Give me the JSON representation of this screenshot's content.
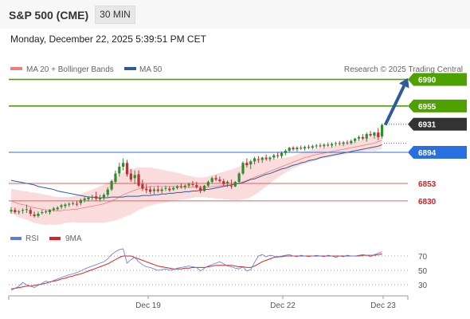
{
  "header": {
    "instrument": "S&P 500 (CME)",
    "timeframe": "30 MIN"
  },
  "timestamp": "Monday, December 22, 2025 5:39:51 PM CET",
  "legend": {
    "bollinger": "MA 20 + Bollinger Bands",
    "ma50": "MA 50",
    "credit": "Research © 2025 Trading Central",
    "rsi": "RSI",
    "rsi_ma": "9MA"
  },
  "colors": {
    "resistance": "#4da100",
    "last_price": "#333333",
    "pivot": "#2a6fe0",
    "support": "#e06060",
    "support_text": "#cc2222",
    "ma50": "#2f5a9c",
    "bollinger": "#f07c7c",
    "band_fill": "#fbdcdc",
    "up_candle": "#2e8b2e",
    "down_candle": "#c03030",
    "arrow": "#2f5a9c",
    "rsi_line": "#5b7be0",
    "rsi_ma_line": "#e02020"
  },
  "chart_data": {
    "type": "candlestick",
    "price_axis_range": [
      6813,
      6998
    ],
    "x_labels": [
      "Dec 19",
      "Dec 22",
      "Dec 23"
    ],
    "levels": [
      {
        "name": "resistance-2",
        "value": 6990,
        "label": "6990",
        "kind": "resistance"
      },
      {
        "name": "resistance-1",
        "value": 6955,
        "label": "6955",
        "kind": "resistance"
      },
      {
        "name": "last",
        "value": 6931,
        "label": "6931",
        "kind": "last"
      },
      {
        "name": "pivot",
        "value": 6894,
        "label": "6894",
        "kind": "pivot"
      },
      {
        "name": "support-1",
        "value": 6853,
        "label": "6853",
        "kind": "support"
      },
      {
        "name": "support-2",
        "value": 6830,
        "label": "6830",
        "kind": "support"
      }
    ],
    "ohlc": [
      [
        6816,
        6822,
        6813,
        6818
      ],
      [
        6818,
        6821,
        6813,
        6815
      ],
      [
        6815,
        6818,
        6812,
        6816
      ],
      [
        6817,
        6820,
        6813,
        6818
      ],
      [
        6818,
        6825,
        6814,
        6819
      ],
      [
        6818,
        6821,
        6810,
        6813
      ],
      [
        6812,
        6816,
        6808,
        6810
      ],
      [
        6810,
        6816,
        6808,
        6813
      ],
      [
        6814,
        6818,
        6812,
        6815
      ],
      [
        6815,
        6818,
        6813,
        6816
      ],
      [
        6815,
        6819,
        6812,
        6818
      ],
      [
        6818,
        6822,
        6816,
        6820
      ],
      [
        6819,
        6823,
        6817,
        6821
      ],
      [
        6822,
        6826,
        6819,
        6824
      ],
      [
        6823,
        6827,
        6820,
        6825
      ],
      [
        6825,
        6828,
        6822,
        6826
      ],
      [
        6826,
        6829,
        6824,
        6827
      ],
      [
        6826,
        6830,
        6823,
        6825
      ],
      [
        6827,
        6833,
        6824,
        6831
      ],
      [
        6831,
        6835,
        6828,
        6833
      ],
      [
        6832,
        6836,
        6829,
        6834
      ],
      [
        6834,
        6838,
        6831,
        6835
      ],
      [
        6836,
        6842,
        6830,
        6833
      ],
      [
        6832,
        6838,
        6829,
        6834
      ],
      [
        6834,
        6840,
        6831,
        6838
      ],
      [
        6838,
        6848,
        6835,
        6845
      ],
      [
        6845,
        6858,
        6843,
        6856
      ],
      [
        6855,
        6870,
        6852,
        6866
      ],
      [
        6866,
        6880,
        6862,
        6875
      ],
      [
        6875,
        6886,
        6870,
        6880
      ],
      [
        6880,
        6884,
        6862,
        6865
      ],
      [
        6866,
        6872,
        6855,
        6858
      ],
      [
        6860,
        6870,
        6852,
        6864
      ],
      [
        6865,
        6870,
        6848,
        6850
      ],
      [
        6852,
        6858,
        6843,
        6846
      ],
      [
        6846,
        6852,
        6840,
        6844
      ],
      [
        6845,
        6849,
        6839,
        6842
      ],
      [
        6843,
        6848,
        6839,
        6845
      ],
      [
        6845,
        6850,
        6841,
        6843
      ],
      [
        6843,
        6848,
        6840,
        6845
      ],
      [
        6846,
        6850,
        6843,
        6847
      ],
      [
        6846,
        6849,
        6842,
        6844
      ],
      [
        6845,
        6849,
        6843,
        6847
      ],
      [
        6847,
        6851,
        6845,
        6849
      ],
      [
        6849,
        6853,
        6846,
        6848
      ],
      [
        6848,
        6852,
        6845,
        6850
      ],
      [
        6850,
        6854,
        6847,
        6852
      ],
      [
        6852,
        6856,
        6849,
        6851
      ],
      [
        6851,
        6855,
        6846,
        6848
      ],
      [
        6847,
        6850,
        6840,
        6843
      ],
      [
        6843,
        6851,
        6842,
        6850
      ],
      [
        6850,
        6857,
        6848,
        6855
      ],
      [
        6855,
        6862,
        6853,
        6860
      ],
      [
        6860,
        6864,
        6856,
        6858
      ],
      [
        6858,
        6862,
        6854,
        6856
      ],
      [
        6856,
        6859,
        6850,
        6852
      ],
      [
        6853,
        6857,
        6848,
        6855
      ],
      [
        6850,
        6858,
        6846,
        6849
      ],
      [
        6849,
        6856,
        6848,
        6855
      ],
      [
        6855,
        6868,
        6852,
        6866
      ],
      [
        6866,
        6882,
        6864,
        6880
      ],
      [
        6880,
        6886,
        6874,
        6877
      ],
      [
        6878,
        6884,
        6872,
        6882
      ],
      [
        6882,
        6888,
        6878,
        6886
      ],
      [
        6885,
        6889,
        6880,
        6884
      ],
      [
        6884,
        6888,
        6880,
        6887
      ],
      [
        6887,
        6891,
        6883,
        6885
      ],
      [
        6885,
        6889,
        6882,
        6887
      ],
      [
        6887,
        6892,
        6884,
        6890
      ],
      [
        6890,
        6894,
        6886,
        6889
      ],
      [
        6889,
        6895,
        6886,
        6893
      ],
      [
        6893,
        6898,
        6890,
        6896
      ],
      [
        6896,
        6901,
        6894,
        6900
      ],
      [
        6900,
        6902,
        6896,
        6898
      ],
      [
        6898,
        6902,
        6895,
        6900
      ],
      [
        6900,
        6903,
        6897,
        6899
      ],
      [
        6899,
        6903,
        6896,
        6901
      ],
      [
        6901,
        6904,
        6898,
        6900
      ],
      [
        6900,
        6904,
        6898,
        6902
      ],
      [
        6902,
        6905,
        6899,
        6903
      ],
      [
        6903,
        6906,
        6900,
        6902
      ],
      [
        6902,
        6906,
        6899,
        6904
      ],
      [
        6904,
        6907,
        6901,
        6903
      ],
      [
        6903,
        6907,
        6900,
        6905
      ],
      [
        6905,
        6908,
        6902,
        6906
      ],
      [
        6906,
        6909,
        6903,
        6905
      ],
      [
        6905,
        6909,
        6902,
        6907
      ],
      [
        6907,
        6910,
        6904,
        6906
      ],
      [
        6906,
        6911,
        6904,
        6909
      ],
      [
        6909,
        6913,
        6906,
        6912
      ],
      [
        6912,
        6916,
        6909,
        6914
      ],
      [
        6914,
        6918,
        6910,
        6912
      ],
      [
        6912,
        6920,
        6908,
        6918
      ],
      [
        6918,
        6922,
        6914,
        6916
      ],
      [
        6916,
        6921,
        6912,
        6920
      ],
      [
        6920,
        6926,
        6910,
        6914
      ],
      [
        6915,
        6932,
        6912,
        6930
      ]
    ],
    "ma50": [
      6857,
      6856,
      6855,
      6854,
      6853,
      6852,
      6851,
      6849,
      6848,
      6847,
      6846,
      6845,
      6843,
      6842,
      6841,
      6840,
      6839,
      6838,
      6837,
      6836,
      6835,
      6835,
      6834,
      6834,
      6834,
      6834,
      6835,
      6835,
      6835,
      6835,
      6836,
      6836,
      6836,
      6836,
      6837,
      6837,
      6837,
      6838,
      6838,
      6839,
      6839,
      6840,
      6840,
      6841,
      6841,
      6842,
      6842,
      6843,
      6843,
      6844,
      6845,
      6845,
      6846,
      6847,
      6848,
      6849,
      6850,
      6851,
      6852,
      6853,
      6854,
      6856,
      6858,
      6859,
      6861,
      6863,
      6865,
      6866,
      6868,
      6870,
      6872,
      6873,
      6875,
      6877,
      6878,
      6880,
      6881,
      6883,
      6884,
      6885,
      6887,
      6888,
      6889,
      6890,
      6891,
      6892,
      6893,
      6894,
      6895,
      6896,
      6897,
      6898,
      6899,
      6900,
      6901,
      6902,
      6904
    ],
    "ma20": [
      6830,
      6828,
      6826,
      6825,
      6824,
      6822,
      6821,
      6820,
      6819,
      6818,
      6818,
      6817,
      6817,
      6817,
      6818,
      6818,
      6819,
      6819,
      6820,
      6821,
      6822,
      6823,
      6824,
      6825,
      6826,
      6828,
      6830,
      6832,
      6835,
      6838,
      6840,
      6842,
      6844,
      6846,
      6847,
      6848,
      6849,
      6849,
      6849,
      6849,
      6849,
      6849,
      6849,
      6849,
      6849,
      6848,
      6848,
      6848,
      6848,
      6848,
      6848,
      6848,
      6849,
      6849,
      6850,
      6850,
      6851,
      6851,
      6852,
      6853,
      6855,
      6857,
      6859,
      6861,
      6863,
      6865,
      6867,
      6869,
      6871,
      6873,
      6875,
      6877,
      6879,
      6881,
      6883,
      6885,
      6887,
      6888,
      6890,
      6891,
      6892,
      6893,
      6894,
      6895,
      6896,
      6897,
      6898,
      6899,
      6900,
      6901,
      6902,
      6903,
      6904,
      6905,
      6906,
      6908,
      6910
    ],
    "bb_width": [
      16,
      17,
      18,
      18,
      19,
      19,
      20,
      20,
      20,
      20,
      19,
      19,
      18,
      18,
      17,
      17,
      17,
      18,
      19,
      20,
      21,
      22,
      23,
      24,
      25,
      26,
      27,
      28,
      29,
      30,
      30,
      30,
      29,
      28,
      27,
      26,
      25,
      24,
      23,
      22,
      21,
      20,
      19,
      18,
      17,
      16,
      15,
      14,
      13,
      13,
      13,
      14,
      15,
      16,
      17,
      18,
      19,
      20,
      21,
      22,
      23,
      24,
      24,
      23,
      22,
      20,
      18,
      16,
      14,
      12,
      11,
      10,
      9,
      8,
      8,
      8,
      8,
      8,
      8,
      8,
      7,
      7,
      7,
      7,
      7,
      7,
      7,
      7,
      7,
      7,
      8,
      8,
      8,
      9,
      10,
      11,
      12
    ],
    "rsi_range": [
      20,
      80
    ],
    "rsi_levels": [
      70,
      50,
      30
    ],
    "rsi": [
      22,
      25,
      28,
      33,
      30,
      28,
      26,
      29,
      32,
      35,
      33,
      36,
      38,
      40,
      42,
      44,
      45,
      47,
      49,
      52,
      54,
      56,
      58,
      60,
      62,
      66,
      72,
      76,
      79,
      80,
      60,
      65,
      68,
      62,
      58,
      55,
      54,
      52,
      50,
      51,
      52,
      50,
      51,
      53,
      54,
      55,
      56,
      55,
      54,
      49,
      53,
      56,
      58,
      60,
      62,
      59,
      56,
      55,
      53,
      52,
      55,
      49,
      51,
      61,
      70,
      72,
      69,
      71,
      70,
      68,
      70,
      71,
      72,
      70,
      69,
      71,
      70,
      69,
      70,
      71,
      70,
      69,
      71,
      70,
      68,
      70,
      69,
      71,
      70,
      70,
      71,
      72,
      71,
      69,
      72,
      74,
      76
    ],
    "rsi_ma": [
      24,
      25,
      26,
      27,
      28,
      28,
      29,
      30,
      31,
      32,
      34,
      35,
      36,
      38,
      39,
      41,
      42,
      44,
      45,
      47,
      49,
      51,
      53,
      55,
      57,
      59,
      62,
      65,
      68,
      70,
      70,
      70,
      68,
      66,
      64,
      62,
      60,
      58,
      56,
      55,
      54,
      53,
      52,
      52,
      52,
      53,
      53,
      54,
      54,
      54,
      54,
      55,
      56,
      57,
      57,
      57,
      57,
      57,
      56,
      55,
      55,
      54,
      54,
      56,
      59,
      62,
      64,
      66,
      68,
      69,
      69,
      70,
      70,
      70,
      70,
      70,
      70,
      70,
      70,
      70,
      70,
      70,
      70,
      70,
      70,
      70,
      70,
      70,
      70,
      70,
      70,
      71,
      71,
      71,
      71,
      72,
      73
    ]
  }
}
